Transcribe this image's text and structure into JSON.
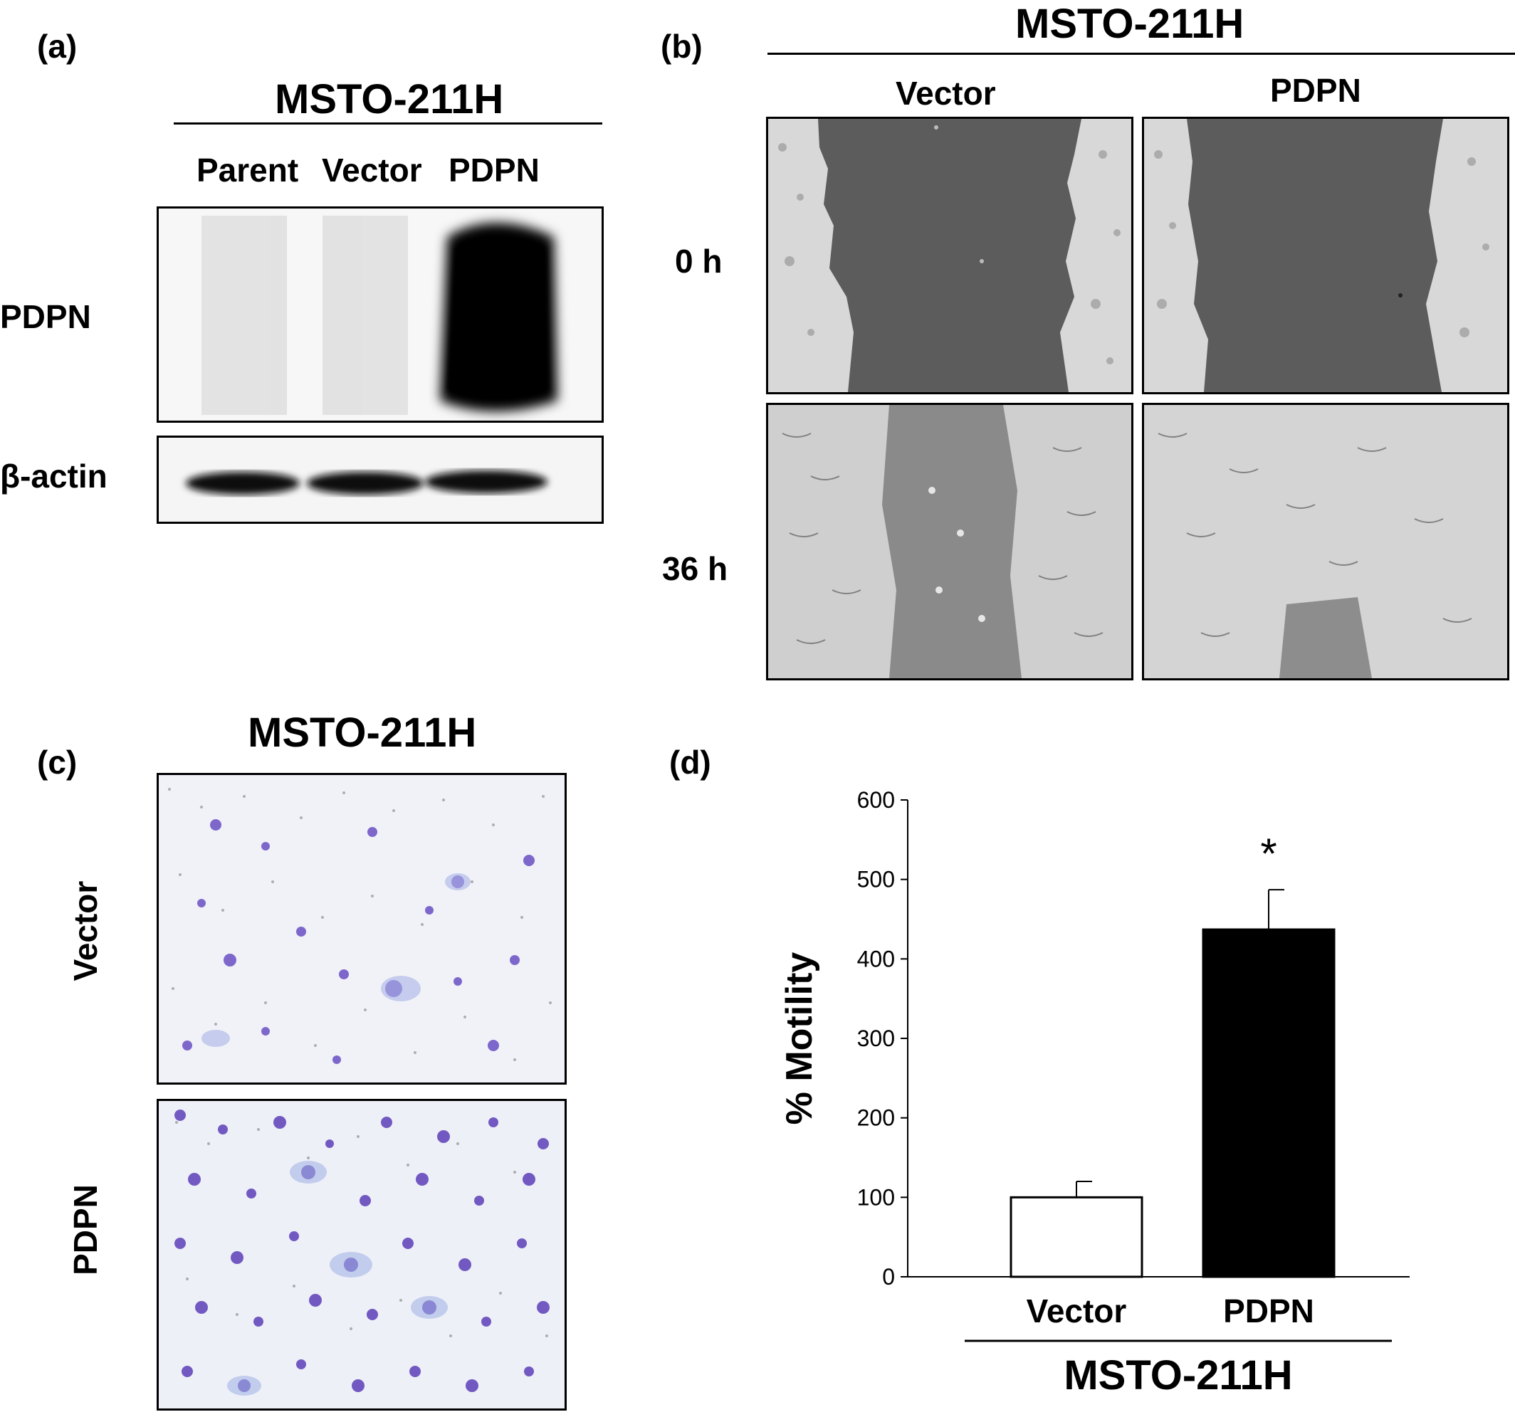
{
  "panels": {
    "a": {
      "label": "(a)",
      "title": "MSTO-211H",
      "lanes": [
        "Parent",
        "Vector",
        "PDPN"
      ],
      "rows": [
        "PDPN",
        "β-actin"
      ]
    },
    "b": {
      "label": "(b)",
      "title": "MSTO-211H",
      "columns": [
        "Vector",
        "PDPN"
      ],
      "timepoints": [
        "0 h",
        "36 h"
      ]
    },
    "c": {
      "label": "(c)",
      "title": "MSTO-211H",
      "rows": [
        "Vector",
        "PDPN"
      ]
    },
    "d": {
      "label": "(d)",
      "group_label": "MSTO-211H",
      "significance": "*"
    }
  },
  "chart_data": {
    "type": "bar",
    "categories": [
      "Vector",
      "PDPN"
    ],
    "values": [
      100,
      437
    ],
    "errors": [
      20,
      50
    ],
    "bar_colors": [
      "#ffffff",
      "#000000"
    ],
    "ylabel": "% Motility",
    "xlabel": "MSTO-211H",
    "ylim": [
      0,
      600
    ],
    "yticks": [
      "0",
      "100",
      "200",
      "300",
      "400",
      "500",
      "600"
    ],
    "annotations": [
      {
        "category": "PDPN",
        "text": "*"
      }
    ],
    "grid": false
  }
}
